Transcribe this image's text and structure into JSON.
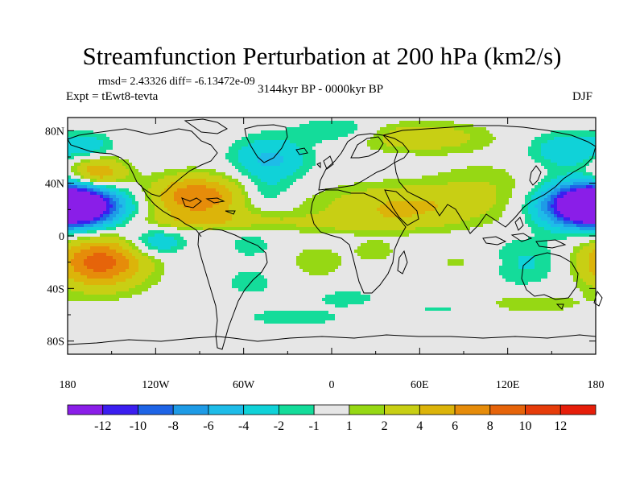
{
  "title": "Streamfunction Perturbation at 200 hPa (km2/s)",
  "stats": "rmsd= 2.43326 diff= -6.13472e-09",
  "experiment": "Expt = tEwt8-tevta",
  "period": "3144kyr BP - 0000kyr BP",
  "season": "DJF",
  "lat_ticks": [
    "80N",
    "40N",
    "0",
    "40S",
    "80S"
  ],
  "lon_ticks": [
    "180",
    "120W",
    "60W",
    "0",
    "60E",
    "120E",
    "180"
  ],
  "colorbar": {
    "labels": [
      "-12",
      "-10",
      "-8",
      "-6",
      "-4",
      "-2",
      "-1",
      "1",
      "2",
      "4",
      "6",
      "8",
      "10",
      "12"
    ],
    "colors": [
      "#8a1ee8",
      "#3b1ef0",
      "#1e64e6",
      "#1e9be6",
      "#1ebce8",
      "#10d2d8",
      "#14dc9a",
      "#e6e6e6",
      "#96d814",
      "#c8cf14",
      "#dcb40a",
      "#e68c0a",
      "#e6640a",
      "#e63c0a",
      "#e61e0a"
    ]
  },
  "chart_data": {
    "type": "heatmap",
    "title": "Streamfunction Perturbation at 200 hPa (km2/s)",
    "variable": "streamfunction perturbation",
    "units": "km2/s",
    "level": "200 hPa",
    "season": "DJF",
    "period": "3144kyr BP - 0000kyr BP",
    "rmsd": 2.43326,
    "diff": -6.13472e-09,
    "lon_range": [
      -180,
      180
    ],
    "lat_range": [
      -90,
      90
    ],
    "contour_levels": [
      -12,
      -10,
      -8,
      -6,
      -4,
      -2,
      -1,
      1,
      2,
      4,
      6,
      8,
      10,
      12
    ],
    "anomalies": [
      {
        "lon": 180,
        "lat": 23,
        "value": -13,
        "slon": 22,
        "slat": 11
      },
      {
        "lon": -180,
        "lat": 23,
        "value": -13,
        "slon": 22,
        "slat": 11
      },
      {
        "lon": -158,
        "lat": -20,
        "value": 9,
        "slon": 22,
        "slat": 14
      },
      {
        "lon": -160,
        "lat": 47,
        "value": 6.5,
        "slon": 14,
        "slat": 9
      },
      {
        "lon": -92,
        "lat": 30,
        "value": 8,
        "slon": 22,
        "slat": 11
      },
      {
        "lon": -120,
        "lat": -5,
        "value": -4,
        "slon": 14,
        "slat": 7
      },
      {
        "lon": -45,
        "lat": 33,
        "value": -2,
        "slon": 11,
        "slat": 7
      },
      {
        "lon": -55,
        "lat": -35,
        "value": -1.5,
        "slon": 15,
        "slat": 9
      },
      {
        "lon": -10,
        "lat": -20,
        "value": 1.5,
        "slon": 17,
        "slat": 11
      },
      {
        "lon": 10,
        "lat": -47,
        "value": -1.6,
        "slon": 16,
        "slat": 5
      },
      {
        "lon": 50,
        "lat": 22,
        "value": 4.3,
        "slon": 42,
        "slat": 12
      },
      {
        "lon": 60,
        "lat": 75,
        "value": 3.6,
        "slon": 32,
        "slat": 8
      },
      {
        "lon": -42,
        "lat": 58,
        "value": -4.5,
        "slon": 18,
        "slat": 12
      },
      {
        "lon": 5,
        "lat": 80,
        "value": -2.5,
        "slon": 20,
        "slat": 7
      },
      {
        "lon": -88,
        "lat": 12,
        "value": 3,
        "slon": 28,
        "slat": 5
      },
      {
        "lon": 100,
        "lat": -20,
        "value": 1.5,
        "slon": 28,
        "slat": 8
      },
      {
        "lon": 130,
        "lat": -20,
        "value": -3,
        "slon": 20,
        "slat": 12
      },
      {
        "lon": 130,
        "lat": -52,
        "value": 1.8,
        "slon": 30,
        "slat": 6
      },
      {
        "lon": -25,
        "lat": -62,
        "value": -1.5,
        "slon": 30,
        "slat": 6
      },
      {
        "lon": 80,
        "lat": -55,
        "value": -1.4,
        "slon": 25,
        "slat": 5
      },
      {
        "lon": 160,
        "lat": 65,
        "value": -3.5,
        "slon": 18,
        "slat": 10
      },
      {
        "lon": -55,
        "lat": -7,
        "value": -2,
        "slon": 10,
        "slat": 6
      },
      {
        "lon": -165,
        "lat": 68,
        "value": -3,
        "slon": 12,
        "slat": 7
      },
      {
        "lon": 105,
        "lat": 40,
        "value": 1.5,
        "slon": 25,
        "slat": 13
      },
      {
        "lon": -5,
        "lat": 10,
        "value": 1.6,
        "slon": 40,
        "slat": 5
      },
      {
        "lon": 30,
        "lat": -12,
        "value": 1.5,
        "slon": 10,
        "slat": 6
      }
    ]
  }
}
